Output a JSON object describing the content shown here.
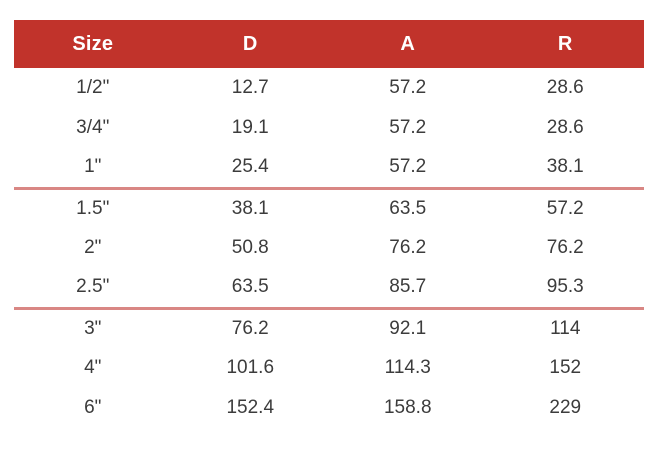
{
  "table": {
    "columns": [
      "Size",
      "D",
      "A",
      "R"
    ],
    "rows": [
      {
        "size": "1/2\"",
        "d": "12.7",
        "a": "57.2",
        "r": "28.6"
      },
      {
        "size": "3/4\"",
        "d": "19.1",
        "a": "57.2",
        "r": "28.6"
      },
      {
        "size": "1\"",
        "d": "25.4",
        "a": "57.2",
        "r": "38.1"
      },
      {
        "size": "1.5\"",
        "d": "38.1",
        "a": "63.5",
        "r": "57.2"
      },
      {
        "size": "2\"",
        "d": "50.8",
        "a": "76.2",
        "r": "76.2"
      },
      {
        "size": "2.5\"",
        "d": "63.5",
        "a": "85.7",
        "r": "95.3"
      },
      {
        "size": "3\"",
        "d": "76.2",
        "a": "92.1",
        "r": "114"
      },
      {
        "size": "4\"",
        "d": "101.6",
        "a": "114.3",
        "r": "152"
      },
      {
        "size": "6\"",
        "d": "152.4",
        "a": "158.8",
        "r": "229"
      }
    ],
    "colors": {
      "header_bg": "#c1332b",
      "header_text": "#ffffff",
      "body_text": "#3c3c3c",
      "group_separator": "#d98784"
    }
  }
}
